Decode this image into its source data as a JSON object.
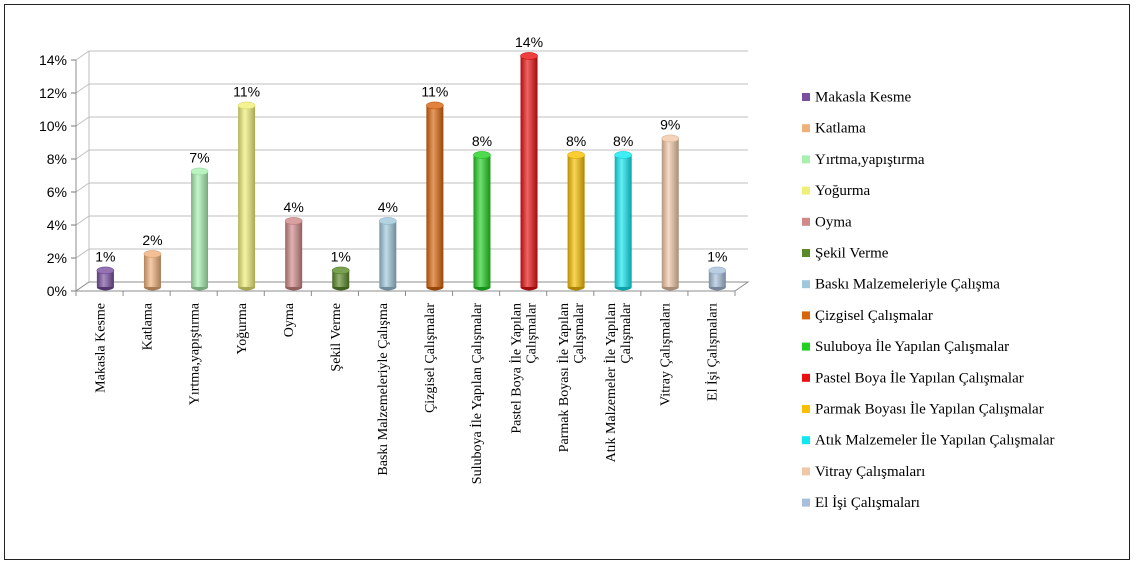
{
  "chart_data": {
    "type": "bar",
    "title": "",
    "xlabel": "",
    "ylabel": "",
    "ylim": [
      0,
      14
    ],
    "yticks": [
      "0%",
      "2%",
      "4%",
      "6%",
      "8%",
      "10%",
      "12%",
      "14%"
    ],
    "grid": true,
    "legend_position": "right",
    "categories": [
      [
        "Makasla Kesme"
      ],
      [
        "Katlama"
      ],
      [
        "Yırtma,yapıştırma"
      ],
      [
        "Yoğurma"
      ],
      [
        "Oyma"
      ],
      [
        "Şekil Verme"
      ],
      [
        "Baskı Malzemeleriyle Çalışma"
      ],
      [
        "Çizgisel Çalışmalar"
      ],
      [
        "Suluboya İle Yapılan Çalışmalar"
      ],
      [
        "Pastel Boya İle Yapılan",
        "Çalışmalar"
      ],
      [
        "Parmak Boyası İle Yapılan",
        "Çalışmalar"
      ],
      [
        "Atık Malzemeler İle Yapılan",
        "Çalışmalar"
      ],
      [
        "Vitray Çalışmaları"
      ],
      [
        "El İşi Çalışmaları"
      ]
    ],
    "values": [
      1,
      2,
      7,
      11,
      4,
      1,
      4,
      11,
      8,
      14,
      8,
      8,
      9,
      1
    ],
    "data_labels": [
      "1%",
      "2%",
      "7%",
      "11%",
      "4%",
      "1%",
      "4%",
      "11%",
      "8%",
      "14%",
      "8%",
      "8%",
      "9%",
      "1%"
    ],
    "legend": [
      "Makasla Kesme",
      "Katlama",
      "Yırtma,yapıştırma",
      "Yoğurma",
      "Oyma",
      "Şekil Verme",
      "Baskı Malzemeleriyle Çalışma",
      "Çizgisel Çalışmalar",
      "Suluboya İle Yapılan Çalışmalar",
      "Pastel Boya İle Yapılan Çalışmalar",
      "Parmak Boyası İle Yapılan Çalışmalar",
      "Atık Malzemeler İle Yapılan Çalışmalar",
      "Vitray Çalışmaları",
      "El İşi Çalışmaları"
    ],
    "colors": [
      "#7a4fa0",
      "#f0b07a",
      "#a8f0b0",
      "#f0f078",
      "#d08888",
      "#5a8a28",
      "#a0c8dc",
      "#d8640c",
      "#22d022",
      "#e81010",
      "#f8c000",
      "#10e8f0",
      "#f0c8a8",
      "#a8c0dc"
    ]
  }
}
